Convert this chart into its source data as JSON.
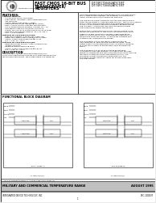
{
  "bg_color": "#e8e8e8",
  "page_bg": "#ffffff",
  "border_color": "#000000",
  "header": {
    "logo_text": "Integrated Device Technology, Inc.",
    "title_line1": "FAST CMOS 16-BIT BUS",
    "title_line2": "TRANSCEIVER/",
    "title_line3": "REGISTERS",
    "part1_line1": "IDT74FCT16652AT/CT/ET",
    "part1_line2": "IDT74FCT16652AT/CT/ET"
  },
  "features_title": "FEATURES:",
  "features": [
    "Common features:",
    "  – 0.5 MICRON CMOS Technology",
    "  – High-Speed, low-power CMOS replacement for",
    "    ABT functions",
    "  – Typical tpd(Output Skew) < 250ps",
    "  – Low input and output leakage ≤1μA (max.)",
    "  – ESD > 2000V per MIL-STD-883, Method 3015",
    "  – LVTTL using machine model(C <200pF, Rs = 0)",
    "  – Packages include the LCC/SSOP, Fine-Pitch",
    "    TSSOP, 15.1 mil pitch TVSOP and 25 mil pitch SSOP",
    "  – Extended commercial range of -40°C to +85°C",
    "  – VCC = 3.3V nominal",
    "Features for FCT16652AT/CT/ET:",
    "  – High drive outputs (>200mA Ioh, 64mA Icc)",
    "  – Power off 3-state outputs permit live-insertion",
    "  – Typical Output Ground Bounce ≤1.0V at",
    "    Vcc = 3.3V, Tj = 25°C",
    "Features for FCT16652AT/CT/ET:",
    "  – Balanced Output Drivers: -32mA (commercial),",
    "    -100mA (military)",
    "  – Reduced system switching noise",
    "  – Typical Output Ground Bounce ≤ 0.8V at",
    "    Vcc = 3.3V, Tj = 25°C"
  ],
  "description_title": "DESCRIPTION",
  "description_left": [
    "The FCT16652 A/CT/ET and PCB tested 54/74 FCT",
    "16-bit registered transceivers are built using advanced dual",
    "metal CMOS technology. These high-speed, low-power de-"
  ],
  "description_right_top": [
    "vices are organized as two independent 8-bit bus transceivers",
    "with 2-state D-type registers. For example, the nOEAB and",
    "nOEBA signals control the transceiver functions.",
    "",
    "The nOEAB and nOEBA PORTCON pins are provided to select",
    "either stored output or pass-thru data function. This circuitry used to",
    "select control and eliminate the typical disturbing glitch that",
    "occurs in a multiplexer during the transition between stored",
    "and live data. A LDIN input level selects read-thru mode",
    "and a NDIR level selects stored data.",
    "",
    "Both on the A and B registers of SAR, can be clocked in the",
    "standard B transceiver or NPX mode consisting of the appro-",
    "priate clock pins (nCLKAB or nCLKBA), regardless of the",
    "latent or enable control pins. Pass-through organization of",
    "stand-alone simplifies layout. All inputs are designed with",
    "hysteresis for improved noise margin.",
    "",
    "The FCT16652AT/CT/ET are ideally suited for driving",
    "high-capacitance loads and low-impedance loads. These",
    "output buffers are designed with driver off disable capability",
    "to allow live insertion of boards when used as backplane",
    "drivers.",
    "",
    "The FCT16652AT/CT/ET have balanced output drive",
    "using patent 5,455 specification. This effectively provides",
    "minimum undershoot and controlled output fall times reducing",
    "the need for external series terminating resistors. The",
    "FCT16652 A/CT/ET are drop-in replacements for the",
    "FCT16652 A/CT/ET and FAST 16620 for on-board bus inser-",
    "tion applications."
  ],
  "block_diagram_title": "FUNCTIONAL BLOCK DIAGRAM",
  "footer_trademark": "©IDT is a registered trademark of Integrated Device Technology, Inc.",
  "footer_left": "MILITARY AND COMMERCIAL TEMPERATURE RANGE",
  "footer_right": "AUGUST 1995",
  "footer_company": "INTEGRATED DEVICE TECHNOLOGY, INC.",
  "footer_doc": "DSC-1000/07",
  "page_num": "1"
}
